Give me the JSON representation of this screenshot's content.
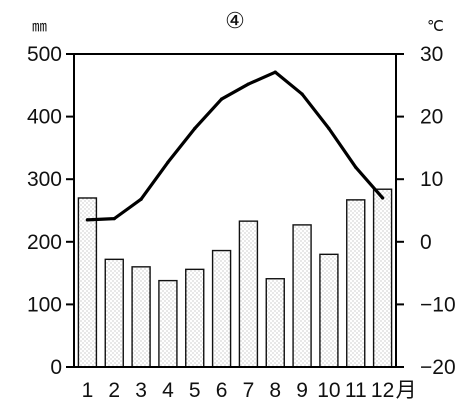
{
  "chart_data": {
    "type": "bar",
    "title": "④",
    "categories": [
      "1",
      "2",
      "3",
      "4",
      "5",
      "6",
      "7",
      "8",
      "9",
      "10",
      "11",
      "12"
    ],
    "x_suffix": "月",
    "y_left_unit": "㎜",
    "y_right_unit": "℃",
    "y_left_range": [
      0,
      500
    ],
    "y_left_ticks": [
      0,
      100,
      200,
      300,
      400,
      500
    ],
    "y_right_range": [
      -20,
      30
    ],
    "y_right_ticks": [
      -20,
      -10,
      0,
      10,
      20,
      30
    ],
    "y_right_tick_labels": [
      "−20",
      "−10",
      "0",
      "10",
      "20",
      "30"
    ],
    "grid": false,
    "series": [
      {
        "type": "bar",
        "axis": "left",
        "values": [
          270,
          172,
          160,
          138,
          156,
          186,
          233,
          141,
          227,
          180,
          267,
          284
        ],
        "color": "#d9d9d9"
      },
      {
        "type": "line",
        "axis": "right",
        "values": [
          3.5,
          3.7,
          6.8,
          12.7,
          18.1,
          22.8,
          25.2,
          27.1,
          23.6,
          18.1,
          11.9,
          7.0
        ],
        "color": "#000000"
      }
    ]
  }
}
